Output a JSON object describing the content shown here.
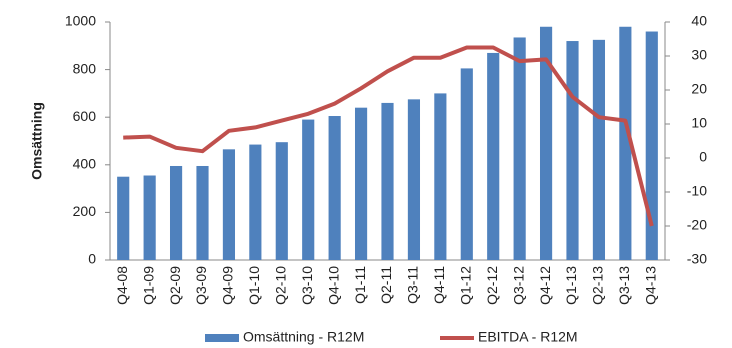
{
  "chart_data": {
    "type": "bar",
    "y_label": "Omsättning",
    "categories": [
      "Q4-08",
      "Q1-09",
      "Q2-09",
      "Q3-09",
      "Q4-09",
      "Q1-10",
      "Q2-10",
      "Q3-10",
      "Q4-10",
      "Q1-11",
      "Q2-11",
      "Q3-11",
      "Q4-11",
      "Q1-12",
      "Q2-12",
      "Q3-12",
      "Q4-12",
      "Q1-13",
      "Q2-13",
      "Q3-13",
      "Q4-13"
    ],
    "series": [
      {
        "name": "Omsättning - R12M",
        "type": "bar",
        "color": "#4f81bd",
        "values": [
          350,
          355,
          395,
          395,
          465,
          485,
          495,
          590,
          605,
          640,
          660,
          675,
          700,
          805,
          870,
          935,
          980,
          920,
          925,
          980,
          960
        ]
      },
      {
        "name": "EBITDA - R12M",
        "type": "line",
        "axis": "y2",
        "color": "#c0504d",
        "values": [
          6,
          6.3,
          3,
          2,
          8,
          9,
          11,
          13,
          16,
          20.5,
          25.5,
          29.5,
          29.5,
          32.5,
          32.5,
          28.5,
          29,
          18,
          12,
          11,
          -20
        ]
      }
    ],
    "ylim": [
      0,
      1000
    ],
    "yticks": [
      0,
      200,
      400,
      600,
      800,
      1000
    ],
    "y2lim": [
      -30,
      40
    ],
    "y2ticks": [
      -30,
      -20,
      -10,
      0,
      10,
      20,
      30,
      40
    ],
    "grid": false
  }
}
